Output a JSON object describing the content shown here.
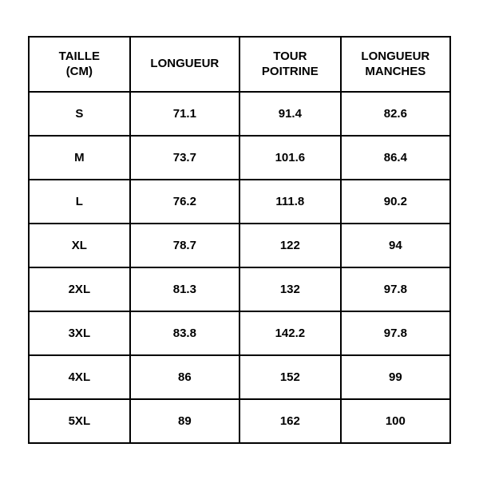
{
  "size_table": {
    "type": "table",
    "background_color": "#ffffff",
    "border_color": "#000000",
    "border_width": 2,
    "text_color": "#000000",
    "header_fontsize": 15,
    "cell_fontsize": 15,
    "font_weight": "bold",
    "columns": [
      {
        "label": "TAILLE\n(CM)",
        "width_pct": 24
      },
      {
        "label": "LONGUEUR",
        "width_pct": 26
      },
      {
        "label": "TOUR\nPOITRINE",
        "width_pct": 24
      },
      {
        "label": "LONGUEUR\nMANCHES",
        "width_pct": 26
      }
    ],
    "rows": [
      [
        "S",
        "71.1",
        "91.4",
        "82.6"
      ],
      [
        "M",
        "73.7",
        "101.6",
        "86.4"
      ],
      [
        "L",
        "76.2",
        "111.8",
        "90.2"
      ],
      [
        "XL",
        "78.7",
        "122",
        "94"
      ],
      [
        "2XL",
        "81.3",
        "132",
        "97.8"
      ],
      [
        "3XL",
        "83.8",
        "142.2",
        "97.8"
      ],
      [
        "4XL",
        "86",
        "152",
        "99"
      ],
      [
        "5XL",
        "89",
        "162",
        "100"
      ]
    ]
  }
}
